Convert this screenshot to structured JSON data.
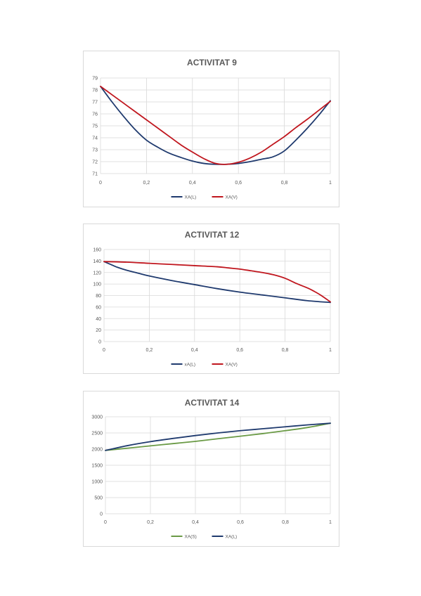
{
  "chart_data": [
    {
      "type": "line",
      "title": "ACTIVITAT 9",
      "xlim": [
        0,
        1
      ],
      "ylim": [
        71,
        79
      ],
      "xticks": [
        "0",
        "0,2",
        "0,4",
        "0,6",
        "0,8",
        "1"
      ],
      "yticks": [
        "71",
        "72",
        "73",
        "74",
        "75",
        "76",
        "77",
        "78",
        "79"
      ],
      "legend_position": "bottom",
      "grid": true,
      "series": [
        {
          "name": "XA(L)",
          "color": "#1f3a6e",
          "x": [
            0,
            0.05,
            0.1,
            0.15,
            0.2,
            0.25,
            0.3,
            0.35,
            0.4,
            0.45,
            0.5,
            0.55,
            0.6,
            0.65,
            0.7,
            0.75,
            0.8,
            0.85,
            0.9,
            0.95,
            1
          ],
          "y": [
            78.3,
            77.0,
            75.8,
            74.7,
            73.8,
            73.2,
            72.7,
            72.35,
            72.05,
            71.85,
            71.78,
            71.78,
            71.85,
            72.0,
            72.2,
            72.4,
            72.9,
            73.8,
            74.8,
            75.9,
            77.1
          ]
        },
        {
          "name": "XA(V)",
          "color": "#c0161e",
          "x": [
            0,
            0.05,
            0.1,
            0.15,
            0.2,
            0.25,
            0.3,
            0.35,
            0.4,
            0.45,
            0.5,
            0.55,
            0.6,
            0.65,
            0.7,
            0.75,
            0.8,
            0.85,
            0.9,
            0.95,
            1
          ],
          "y": [
            78.3,
            77.6,
            76.9,
            76.2,
            75.5,
            74.8,
            74.1,
            73.4,
            72.8,
            72.25,
            71.85,
            71.78,
            71.95,
            72.3,
            72.8,
            73.45,
            74.1,
            74.85,
            75.55,
            76.3,
            77.05
          ]
        }
      ]
    },
    {
      "type": "line",
      "title": "ACTIVITAT 12",
      "xlim": [
        0,
        1
      ],
      "ylim": [
        0,
        160
      ],
      "xticks": [
        "0",
        "0,2",
        "0,4",
        "0,6",
        "0,8",
        "1"
      ],
      "yticks": [
        "0",
        "20",
        "40",
        "60",
        "80",
        "100",
        "120",
        "140",
        "160"
      ],
      "legend_position": "bottom",
      "grid": true,
      "series": [
        {
          "name": "xA(L)",
          "color": "#1f3a6e",
          "x": [
            0,
            0.03,
            0.06,
            0.1,
            0.15,
            0.2,
            0.3,
            0.4,
            0.5,
            0.6,
            0.7,
            0.8,
            0.9,
            1
          ],
          "y": [
            139,
            134,
            129,
            124,
            119,
            114,
            106,
            99,
            92,
            86,
            81,
            76,
            71,
            68
          ]
        },
        {
          "name": "XA(V)",
          "color": "#c0161e",
          "x": [
            0,
            0.1,
            0.2,
            0.3,
            0.4,
            0.5,
            0.55,
            0.6,
            0.65,
            0.7,
            0.75,
            0.8,
            0.85,
            0.9,
            0.93,
            0.96,
            1
          ],
          "y": [
            139,
            138,
            136,
            134,
            132,
            130,
            128,
            126,
            123,
            120,
            116,
            110,
            101,
            93,
            87,
            80,
            69
          ]
        }
      ]
    },
    {
      "type": "line",
      "title": "ACTIVITAT 14",
      "xlim": [
        0,
        1
      ],
      "ylim": [
        0,
        3000
      ],
      "xticks": [
        "0",
        "0,2",
        "0,4",
        "0,6",
        "0,8",
        "1"
      ],
      "yticks": [
        "0",
        "500",
        "1000",
        "1500",
        "2000",
        "2500",
        "3000"
      ],
      "legend_position": "bottom",
      "grid": true,
      "series": [
        {
          "name": "XA(S)",
          "color": "#6a9a45",
          "x": [
            0,
            0.1,
            0.2,
            0.3,
            0.4,
            0.5,
            0.6,
            0.7,
            0.8,
            0.9,
            1
          ],
          "y": [
            1960,
            2030,
            2100,
            2170,
            2240,
            2320,
            2400,
            2480,
            2570,
            2670,
            2800
          ]
        },
        {
          "name": "XA(L)",
          "color": "#1f3a6e",
          "x": [
            0,
            0.1,
            0.2,
            0.3,
            0.4,
            0.5,
            0.6,
            0.7,
            0.8,
            0.9,
            1
          ],
          "y": [
            1960,
            2110,
            2230,
            2330,
            2420,
            2500,
            2570,
            2630,
            2690,
            2750,
            2800
          ]
        }
      ]
    }
  ]
}
